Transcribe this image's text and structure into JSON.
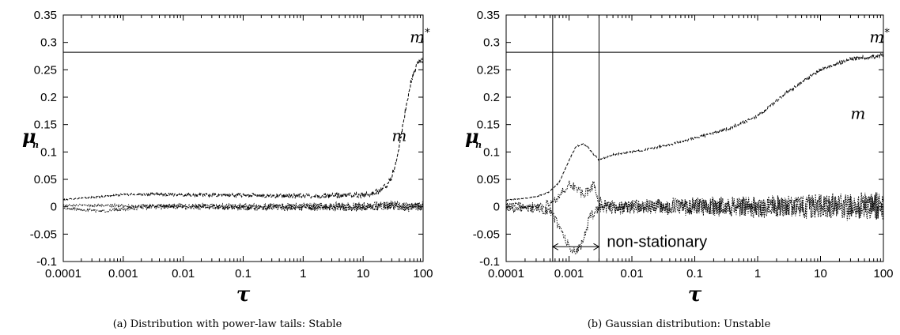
{
  "chart_data": [
    {
      "type": "line",
      "caption": "(a) Distribution with power-law tails: Stable",
      "xlabel": "τ",
      "ylabel": "μ",
      "ylabel_sub": "n",
      "xscale": "log",
      "xlim": [
        0.0001,
        100
      ],
      "ylim": [
        -0.1,
        0.35
      ],
      "xticks": [
        "0.0001",
        "0.001",
        "0.01",
        "0.1",
        "1",
        "10",
        "100"
      ],
      "yticks": [
        "-0.1",
        "-0.05",
        "0",
        "0.05",
        "0.1",
        "0.15",
        "0.2",
        "0.25",
        "0.3",
        "0.35"
      ],
      "hlines": [
        0.282
      ],
      "annotations": [
        {
          "text": "m",
          "sup": "*",
          "x": 60,
          "y": 0.3
        },
        {
          "text": "m",
          "x": 30,
          "y": 0.12
        }
      ],
      "series": [
        {
          "style": "dashed",
          "noise": 0.003,
          "x": [
            0.0001,
            0.0003,
            0.001,
            0.003,
            0.01,
            0.03,
            0.1,
            0.3,
            1,
            3,
            10,
            15,
            20,
            25,
            30,
            35,
            40,
            50,
            60,
            70,
            80,
            100
          ],
          "y": [
            0.013,
            0.017,
            0.022,
            0.023,
            0.022,
            0.021,
            0.021,
            0.02,
            0.02,
            0.02,
            0.022,
            0.025,
            0.03,
            0.04,
            0.055,
            0.08,
            0.11,
            0.17,
            0.22,
            0.245,
            0.26,
            0.27
          ]
        },
        {
          "style": "dotted",
          "noise": 0.004,
          "x": [
            0.0001,
            0.001,
            0.01,
            0.1,
            1,
            10,
            30,
            60,
            100
          ],
          "y": [
            0.003,
            0.002,
            0.0,
            -0.001,
            0.0,
            0.0,
            0.0,
            0.0,
            0.0
          ]
        },
        {
          "style": "dotted",
          "noise": 0.005,
          "x": [
            0.0001,
            0.0005,
            0.001,
            0.003,
            0.01,
            0.1,
            1,
            10,
            30,
            60,
            100
          ],
          "y": [
            -0.003,
            -0.008,
            -0.004,
            0.0,
            0.001,
            0.0,
            0.0,
            0.0,
            0.002,
            0.0,
            0.0
          ]
        }
      ]
    },
    {
      "type": "line",
      "caption": "(b) Gaussian distribution: Unstable",
      "xlabel": "τ",
      "ylabel": "μ",
      "ylabel_sub": "n",
      "xscale": "log",
      "xlim": [
        0.0001,
        100
      ],
      "ylim": [
        -0.1,
        0.35
      ],
      "xticks": [
        "0.0001",
        "0.001",
        "0.01",
        "0.1",
        "1",
        "10",
        "100"
      ],
      "yticks": [
        "-0.1",
        "-0.05",
        "0",
        "0.05",
        "0.1",
        "0.15",
        "0.2",
        "0.25",
        "0.3",
        "0.35"
      ],
      "hlines": [
        0.282
      ],
      "vlines": [
        0.00055,
        0.003
      ],
      "annotations": [
        {
          "text": "m",
          "sup": "*",
          "x": 60,
          "y": 0.3
        },
        {
          "text": "m",
          "x": 30,
          "y": 0.16
        },
        {
          "text": "non-stationary",
          "x": 0.004,
          "y": -0.073,
          "plain": true
        }
      ],
      "arrow": {
        "x1": 0.00055,
        "x2": 0.003,
        "y": -0.073
      },
      "series": [
        {
          "style": "dashed",
          "noise": 0.002,
          "x": [
            0.0001,
            0.0003,
            0.0005,
            0.0007,
            0.001,
            0.0013,
            0.0017,
            0.002,
            0.0025,
            0.003,
            0.005,
            0.01,
            0.03,
            0.1,
            0.3,
            1,
            3,
            10,
            30,
            100
          ],
          "y": [
            0.012,
            0.018,
            0.028,
            0.045,
            0.085,
            0.11,
            0.115,
            0.108,
            0.095,
            0.085,
            0.095,
            0.1,
            0.11,
            0.125,
            0.14,
            0.165,
            0.21,
            0.25,
            0.27,
            0.276
          ]
        },
        {
          "style": "dotted",
          "noise": 0.012,
          "x": [
            0.0001,
            0.0003,
            0.0005,
            0.0007,
            0.001,
            0.0013,
            0.0017,
            0.002,
            0.0025,
            0.003,
            0.005,
            0.01,
            0.1,
            1,
            10,
            100
          ],
          "y": [
            0.003,
            0.003,
            0.005,
            0.02,
            0.04,
            0.035,
            0.02,
            0.03,
            0.04,
            0.01,
            0.0,
            0.0,
            0.0,
            0.0,
            0.0,
            0.0
          ]
        },
        {
          "style": "dotted",
          "noise": 0.014,
          "x": [
            0.0001,
            0.0003,
            0.0005,
            0.0007,
            0.001,
            0.0013,
            0.0017,
            0.002,
            0.0025,
            0.003,
            0.005,
            0.01,
            0.1,
            1,
            10,
            100
          ],
          "y": [
            -0.003,
            -0.004,
            -0.008,
            -0.035,
            -0.075,
            -0.085,
            -0.06,
            -0.03,
            -0.01,
            0.0,
            -0.003,
            0.0,
            0.0,
            0.0,
            0.0,
            0.0
          ]
        }
      ]
    }
  ]
}
